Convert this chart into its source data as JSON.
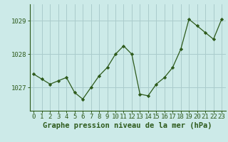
{
  "x": [
    0,
    1,
    2,
    3,
    4,
    5,
    6,
    7,
    8,
    9,
    10,
    11,
    12,
    13,
    14,
    15,
    16,
    17,
    18,
    19,
    20,
    21,
    22,
    23
  ],
  "y": [
    1027.4,
    1027.25,
    1027.1,
    1027.2,
    1027.3,
    1026.85,
    1026.65,
    1027.0,
    1027.35,
    1027.6,
    1028.0,
    1028.25,
    1028.0,
    1026.8,
    1026.75,
    1027.1,
    1027.3,
    1027.6,
    1028.15,
    1029.05,
    1028.85,
    1028.65,
    1028.45,
    1029.05
  ],
  "line_color": "#2d5a1b",
  "marker_color": "#2d5a1b",
  "bg_color": "#cceae8",
  "grid_color": "#aacccc",
  "axis_color": "#2d5a1b",
  "xlabel": "Graphe pression niveau de la mer (hPa)",
  "xlabel_fontsize": 7.5,
  "tick_fontsize": 6.5,
  "ytick_labels": [
    "1027",
    "1028",
    "1029"
  ],
  "ylim": [
    1026.3,
    1029.5
  ],
  "xlim": [
    -0.5,
    23.5
  ],
  "ylabel_vals": [
    1027,
    1028,
    1029
  ]
}
